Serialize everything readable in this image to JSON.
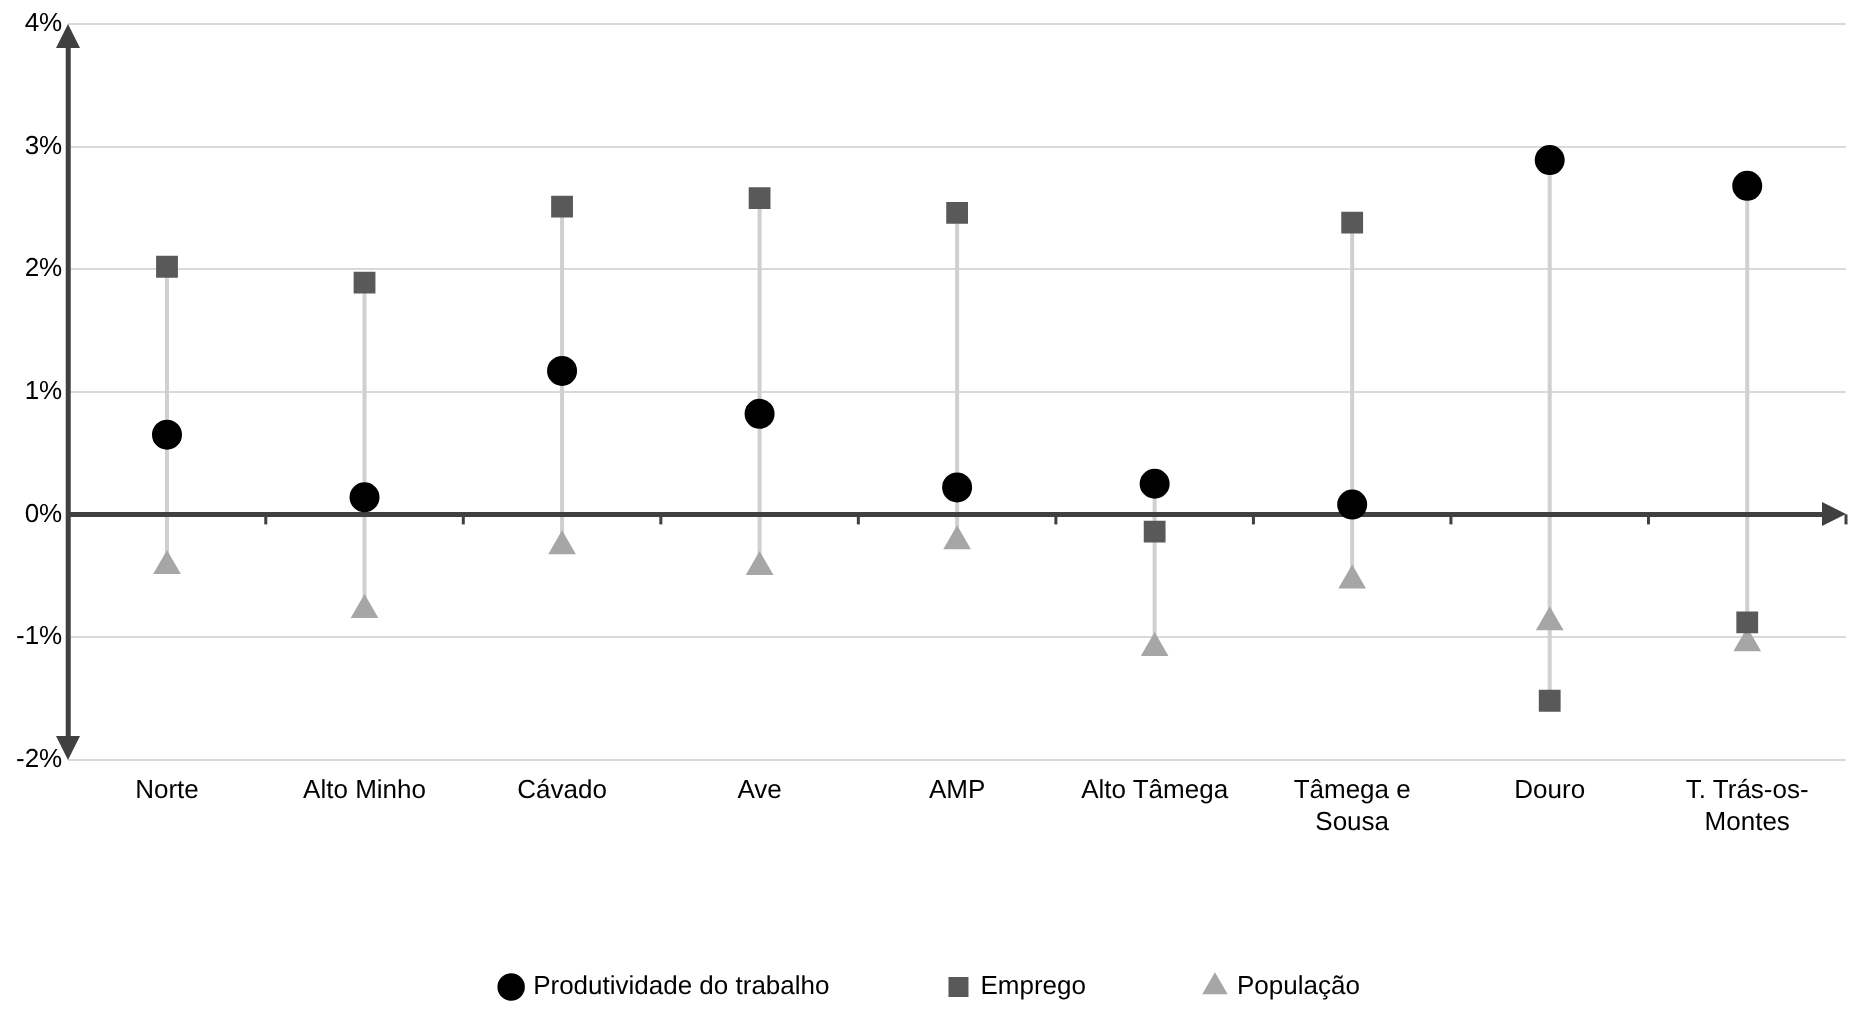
{
  "chart_data": {
    "type": "scatter",
    "categories": [
      "Norte",
      "Alto Minho",
      "Cávado",
      "Ave",
      "AMP",
      "Alto Tâmega",
      "Tâmega e Sousa",
      "Douro",
      "T. Trás-os-Montes"
    ],
    "series": [
      {
        "name": "Produtividade do trabalho",
        "color": "#000000",
        "marker": "circle",
        "values": [
          0.65,
          0.14,
          1.17,
          0.82,
          0.22,
          0.25,
          0.08,
          2.89,
          2.68
        ]
      },
      {
        "name": "Emprego",
        "color": "#595959",
        "marker": "square",
        "values": [
          2.02,
          1.89,
          2.51,
          2.58,
          2.46,
          -0.14,
          2.38,
          -1.52,
          -0.88
        ]
      },
      {
        "name": "População",
        "color": "#a6a6a6",
        "marker": "triangle",
        "values": [
          -0.42,
          -0.78,
          -0.26,
          -0.43,
          -0.22,
          -1.09,
          -0.54,
          -0.88,
          -1.05
        ]
      }
    ],
    "ylim": [
      -2,
      4
    ],
    "yticks": [
      {
        "value": -2,
        "label": "-2%"
      },
      {
        "value": -1,
        "label": "-1%"
      },
      {
        "value": 0,
        "label": "0%"
      },
      {
        "value": 1,
        "label": "1%"
      },
      {
        "value": 2,
        "label": "2%"
      },
      {
        "value": 3,
        "label": "3%"
      },
      {
        "value": 4,
        "label": "4%"
      }
    ],
    "grid": "y",
    "legend": "bottom"
  }
}
